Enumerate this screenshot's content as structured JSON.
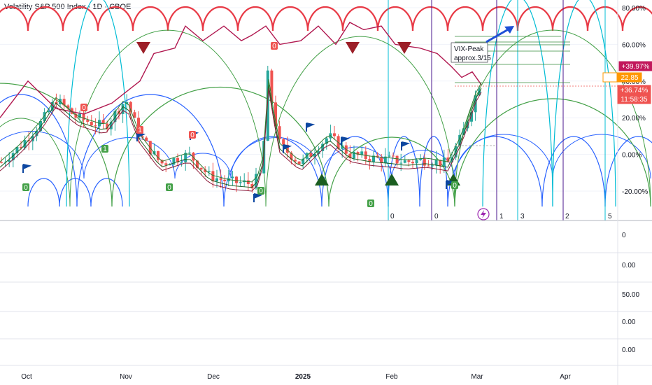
{
  "header": {
    "title": "Volatility S&P 500 Index · 1D · CBOE"
  },
  "annotation": {
    "line1": "VIX-Peak",
    "line2": "approx.3/15"
  },
  "price_badges": [
    {
      "text": "+39.97%",
      "color": "#c2185b"
    },
    {
      "text": "Pre",
      "color": "#ff9800"
    },
    {
      "text": "22.85",
      "color": "#ff9800"
    },
    {
      "text": "+36.74%",
      "color": "#ef5350"
    },
    {
      "text": "11:58:35",
      "color": "#ef5350"
    }
  ],
  "cycle_labels": [
    "0",
    "0",
    "1",
    "3",
    "2",
    "5"
  ],
  "lower_panels": [
    {
      "value": "0"
    },
    {
      "value": "0.00"
    },
    {
      "value": "50.00"
    },
    {
      "value": "0.00"
    },
    {
      "value": "0.00"
    }
  ],
  "chart_data": {
    "type": "candlestick",
    "title": "Volatility S&P 500 Index · 1D · CBOE",
    "y_axis": {
      "scale": "percent",
      "ticks": [
        "80.00%",
        "60.00%",
        "40.00%",
        "20.00%",
        "0.00%",
        "-20.00%"
      ],
      "range": [
        -30,
        85
      ]
    },
    "x_axis": {
      "ticks": [
        "Oct",
        "Nov",
        "Dec",
        "2025",
        "Feb",
        "Mar",
        "Apr"
      ]
    },
    "last_value_percent": 36.74,
    "series": [
      {
        "name": "price",
        "color_up": "#26a69a",
        "color_down": "#ef5350"
      },
      {
        "name": "overlay",
        "color": "#b0174f"
      }
    ],
    "cycle_arcs": [
      "red",
      "blue",
      "green"
    ]
  },
  "colors": {
    "up": "#26a69a",
    "down": "#ef5350",
    "red_arc": "#e83a46",
    "blue_arc": "#2962ff",
    "green_arc": "#43a047",
    "cyan": "#00bcd4",
    "purple": "#4a148c"
  }
}
